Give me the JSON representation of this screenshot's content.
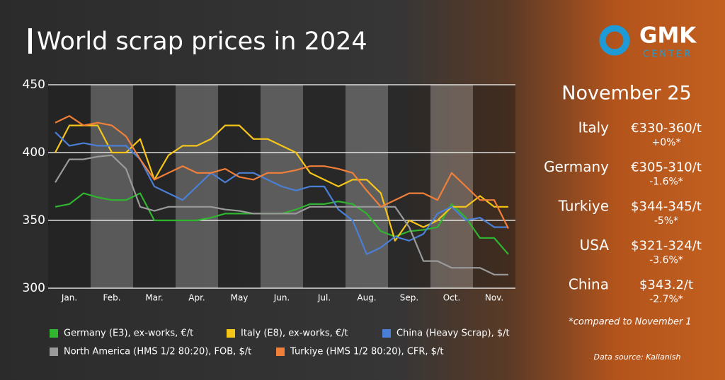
{
  "chart_data": {
    "type": "line",
    "title": "World scrap prices in 2024",
    "categories": [
      null,
      "Jan.",
      null,
      null,
      "Feb.",
      null,
      null,
      "Mar.",
      null,
      null,
      "Apr.",
      null,
      null,
      "May",
      null,
      null,
      "Jun.",
      null,
      null,
      "Jul.",
      null,
      null,
      "Aug.",
      null,
      null,
      "Sep.",
      null,
      null,
      "Oct.",
      null,
      null,
      "Nov.",
      null
    ],
    "series": [
      {
        "name": "Germany (E3), ex-works, €/t",
        "color": "#2fb52f",
        "values": [
          360,
          362,
          370,
          367,
          365,
          365,
          370,
          350,
          350,
          350,
          350,
          352,
          355,
          355,
          355,
          355,
          355,
          358,
          362,
          362,
          364,
          362,
          355,
          342,
          338,
          342,
          343,
          345,
          362,
          352,
          337,
          337,
          325
        ]
      },
      {
        "name": "Italy (E8), ex-works, €/t",
        "color": "#f5c518",
        "values": [
          400,
          420,
          420,
          420,
          400,
          400,
          410,
          380,
          398,
          405,
          405,
          410,
          420,
          420,
          410,
          410,
          405,
          400,
          385,
          380,
          375,
          380,
          380,
          370,
          335,
          350,
          345,
          350,
          360,
          360,
          368,
          360,
          360
        ]
      },
      {
        "name": "China (Heavy Scrap), $/t",
        "color": "#4a7fd6",
        "values": [
          415,
          405,
          407,
          405,
          405,
          405,
          395,
          375,
          370,
          365,
          375,
          385,
          378,
          385,
          385,
          380,
          375,
          372,
          375,
          375,
          358,
          350,
          325,
          330,
          338,
          335,
          340,
          355,
          360,
          350,
          352,
          345,
          345
        ]
      },
      {
        "name": "North America (HMS 1/2 80:20), FOB, $/t",
        "color": "#9a9a9a",
        "values": [
          378,
          395,
          395,
          397,
          398,
          388,
          360,
          357,
          360,
          360,
          360,
          360,
          358,
          357,
          355,
          355,
          355,
          355,
          360,
          360,
          360,
          360,
          360,
          360,
          360,
          345,
          320,
          320,
          315,
          315,
          315,
          310,
          310
        ]
      },
      {
        "name": "Turkiye (HMS 1/2 80:20), CFR, $/t",
        "color": "#f07f3a",
        "values": [
          422,
          427,
          420,
          422,
          420,
          412,
          395,
          380,
          385,
          390,
          385,
          385,
          388,
          382,
          380,
          385,
          385,
          387,
          390,
          390,
          388,
          385,
          372,
          360,
          365,
          370,
          370,
          365,
          385,
          375,
          365,
          365,
          344
        ]
      }
    ],
    "ylim": [
      300,
      450
    ],
    "yticks": [
      300,
      350,
      400,
      450
    ],
    "grid": true
  },
  "logo": {
    "name": "GMK",
    "subname": "CENTER"
  },
  "panel": {
    "date": "November 25",
    "rows": [
      {
        "country": "Italy",
        "price": "€330-360/t",
        "change": "+0%*"
      },
      {
        "country": "Germany",
        "price": "€305-310/t",
        "change": "-1.6%*"
      },
      {
        "country": "Turkiye",
        "price": "$344-345/t",
        "change": "-5%*"
      },
      {
        "country": "USA",
        "price": "$321-324/t",
        "change": "-3.6%*"
      },
      {
        "country": "China",
        "price": "$343.2/t",
        "change": "-2.7%*"
      }
    ],
    "note": "*compared to November 1"
  },
  "source": "Data source: Kallanish"
}
